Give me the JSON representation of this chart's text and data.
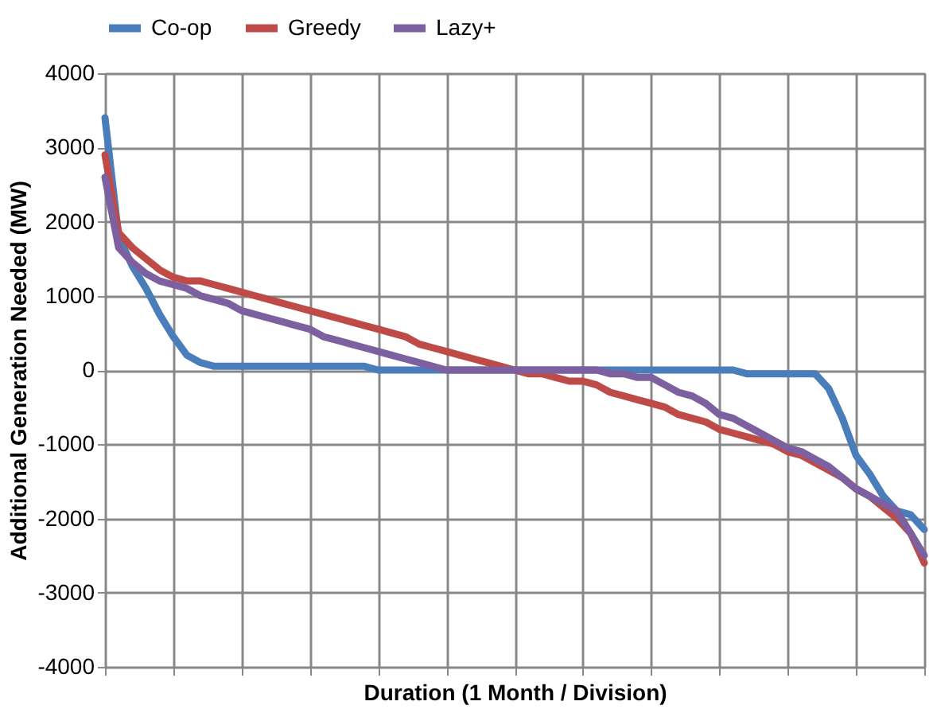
{
  "chart_data": {
    "type": "line",
    "xlabel": "Duration (1 Month / Division)",
    "ylabel": "Additional Generation Needed (MW)",
    "categories": [
      null,
      null,
      null,
      null,
      null,
      null,
      null,
      null,
      null,
      null,
      null,
      null,
      null,
      null,
      null,
      null,
      null,
      null,
      null,
      null,
      null,
      null,
      null,
      null,
      null,
      null,
      null,
      null,
      null,
      null,
      null,
      null,
      null,
      null,
      null,
      null,
      null,
      null,
      null,
      null,
      null,
      null,
      null,
      null,
      null,
      null,
      null,
      null,
      null,
      null,
      null,
      null,
      null,
      null,
      null,
      null,
      null,
      null,
      null,
      null,
      null
    ],
    "ylim": [
      -4000,
      4000
    ],
    "yticks": [
      -4000,
      -3000,
      -2000,
      -1000,
      0,
      1000,
      2000,
      3000,
      4000
    ],
    "tick_labels": "y",
    "grid": true,
    "legend": "top",
    "marker": "none",
    "line_style": "solid",
    "series": [
      {
        "name": "Co-op",
        "color": "#4a7ebb",
        "values": [
          3400,
          1800,
          1400,
          1100,
          750,
          450,
          200,
          100,
          50,
          50,
          50,
          50,
          50,
          50,
          50,
          50,
          50,
          50,
          50,
          50,
          0,
          0,
          0,
          0,
          0,
          0,
          0,
          0,
          0,
          0,
          0,
          0,
          0,
          0,
          0,
          0,
          0,
          0,
          0,
          0,
          0,
          0,
          0,
          0,
          0,
          0,
          0,
          -50,
          -50,
          -50,
          -50,
          -50,
          -50,
          -250,
          -650,
          -1150,
          -1400,
          -1700,
          -1900,
          -1950,
          -2150
        ]
      },
      {
        "name": "Greedy",
        "color": "#be4b48",
        "values": [
          2900,
          1850,
          1650,
          1500,
          1350,
          1250,
          1200,
          1200,
          1150,
          1100,
          1050,
          1000,
          950,
          900,
          850,
          800,
          750,
          700,
          650,
          600,
          550,
          500,
          450,
          350,
          300,
          250,
          200,
          150,
          100,
          50,
          0,
          -50,
          -50,
          -100,
          -150,
          -150,
          -200,
          -300,
          -350,
          -400,
          -450,
          -500,
          -600,
          -650,
          -700,
          -800,
          -850,
          -900,
          -950,
          -1000,
          -1100,
          -1150,
          -1250,
          -1350,
          -1450,
          -1600,
          -1700,
          -1850,
          -2000,
          -2200,
          -2600
        ]
      },
      {
        "name": "Lazy+",
        "color": "#7d60a0",
        "values": [
          2600,
          1650,
          1450,
          1300,
          1200,
          1150,
          1100,
          1000,
          950,
          900,
          800,
          750,
          700,
          650,
          600,
          550,
          450,
          400,
          350,
          300,
          250,
          200,
          150,
          100,
          50,
          0,
          0,
          0,
          0,
          0,
          0,
          0,
          0,
          0,
          0,
          0,
          0,
          -50,
          -50,
          -100,
          -100,
          -200,
          -300,
          -350,
          -450,
          -600,
          -650,
          -750,
          -850,
          -950,
          -1050,
          -1100,
          -1200,
          -1300,
          -1450,
          -1600,
          -1700,
          -1800,
          -1900,
          -2200,
          -2500
        ]
      }
    ]
  }
}
